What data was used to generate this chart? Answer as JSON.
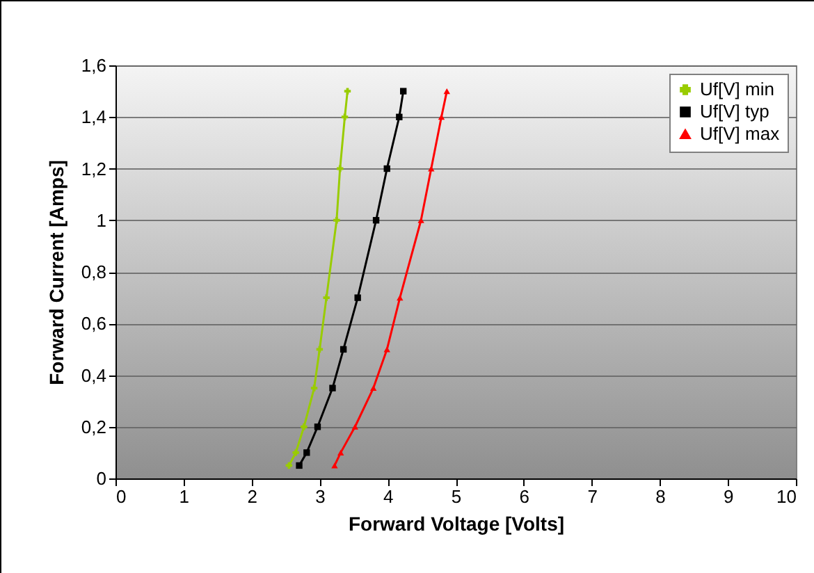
{
  "chart_data": {
    "type": "line",
    "xlabel": "Forward Voltage [Volts]",
    "ylabel": "Forward Current [Amps]",
    "xlim": [
      0,
      10
    ],
    "xticks": [
      0,
      1,
      2,
      3,
      4,
      5,
      6,
      7,
      8,
      9,
      10
    ],
    "ylim": [
      0,
      1.6
    ],
    "yticks": [
      {
        "value": 0,
        "label": "0"
      },
      {
        "value": 0.2,
        "label": "0,2"
      },
      {
        "value": 0.4,
        "label": "0,4"
      },
      {
        "value": 0.6,
        "label": "0,6"
      },
      {
        "value": 0.8,
        "label": "0,8"
      },
      {
        "value": 1,
        "label": "1"
      },
      {
        "value": 1.2,
        "label": "1,2"
      },
      {
        "value": 1.4,
        "label": "1,4"
      },
      {
        "value": 1.6,
        "label": "1,6"
      }
    ],
    "grid": "y",
    "legend": "top right",
    "series": [
      {
        "name": "Uf[V] min",
        "color": "#99cc00",
        "marker": "cross",
        "x": [
          2.55,
          2.65,
          2.77,
          2.92,
          3.0,
          3.1,
          3.25,
          3.3,
          3.37,
          3.41
        ],
        "values": [
          0.05,
          0.1,
          0.2,
          0.35,
          0.5,
          0.7,
          1.0,
          1.2,
          1.4,
          1.5
        ]
      },
      {
        "name": "Uf[V] typ",
        "color": "#000000",
        "marker": "square",
        "x": [
          2.7,
          2.81,
          2.97,
          3.19,
          3.35,
          3.56,
          3.83,
          3.99,
          4.17,
          4.23
        ],
        "values": [
          0.05,
          0.1,
          0.2,
          0.35,
          0.5,
          0.7,
          1.0,
          1.2,
          1.4,
          1.5
        ]
      },
      {
        "name": "Uf[V] max",
        "color": "#ff0000",
        "marker": "triangle",
        "x": [
          3.22,
          3.31,
          3.52,
          3.79,
          3.99,
          4.18,
          4.49,
          4.64,
          4.79,
          4.87
        ],
        "values": [
          0.05,
          0.1,
          0.2,
          0.35,
          0.5,
          0.7,
          1.0,
          1.2,
          1.4,
          1.5
        ]
      }
    ]
  }
}
